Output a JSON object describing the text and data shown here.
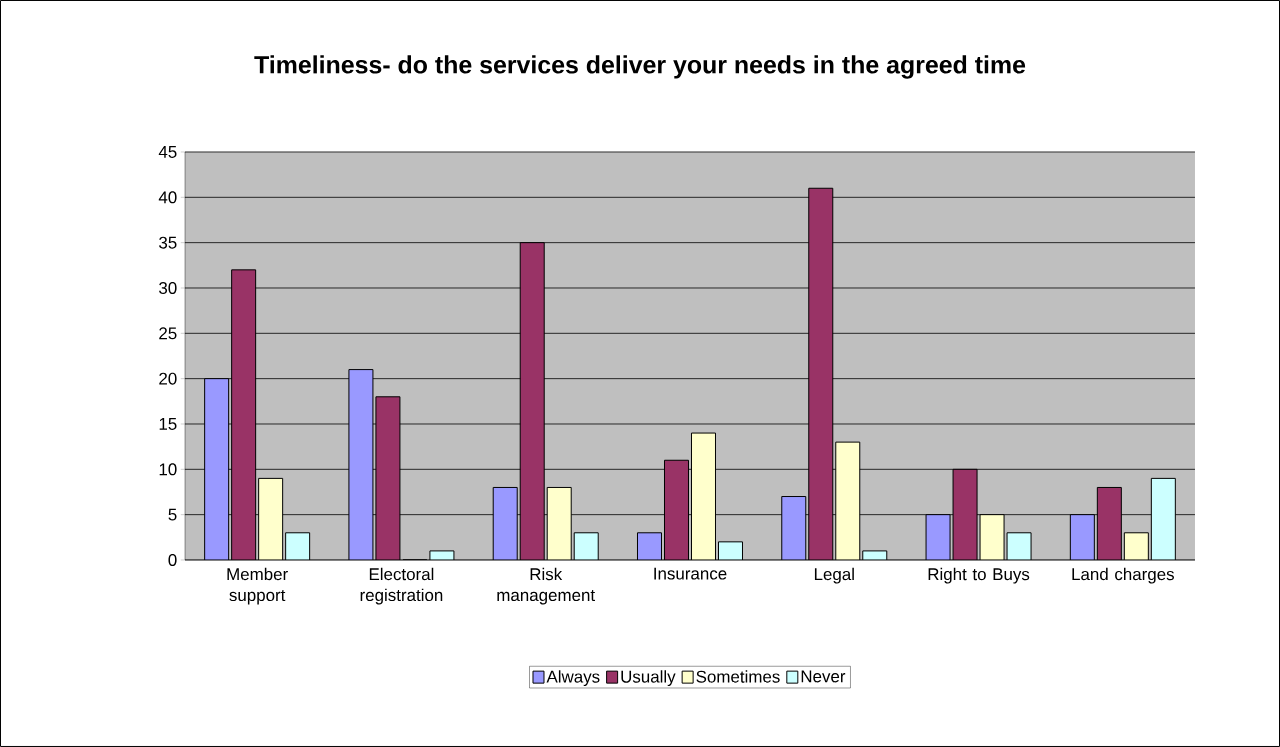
{
  "chart_data": {
    "type": "bar",
    "title": "Timeliness- do the services deliver your needs in the agreed time",
    "categories": [
      "Member support",
      "Electoral registration",
      "Risk management",
      "Insurance",
      "Legal",
      "Right to Buys",
      "Land charges"
    ],
    "series": [
      {
        "name": "Always",
        "color": "#9999ff",
        "values": [
          20,
          21,
          8,
          3,
          7,
          5,
          5
        ]
      },
      {
        "name": "Usually",
        "color": "#993366",
        "values": [
          32,
          18,
          35,
          11,
          41,
          10,
          8
        ]
      },
      {
        "name": "Sometimes",
        "color": "#ffffcc",
        "values": [
          9,
          0,
          8,
          14,
          13,
          5,
          3
        ]
      },
      {
        "name": "Never",
        "color": "#ccffff",
        "values": [
          3,
          1,
          3,
          2,
          1,
          3,
          9
        ]
      }
    ],
    "ylim": [
      0,
      45
    ],
    "yticks": [
      0,
      5,
      10,
      15,
      20,
      25,
      30,
      35,
      40,
      45
    ],
    "grid": "y",
    "legend": "bottom"
  }
}
